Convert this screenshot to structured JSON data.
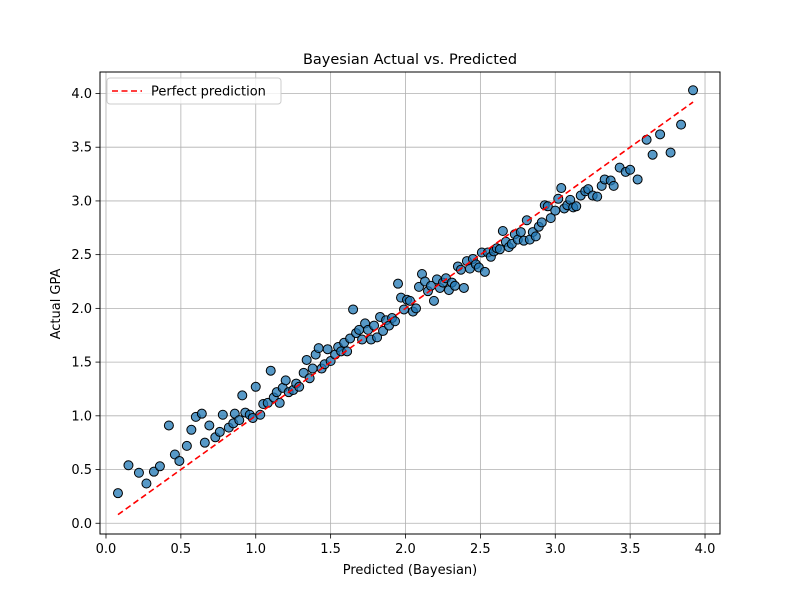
{
  "chart_data": {
    "type": "scatter",
    "title": "Bayesian Actual vs. Predicted",
    "xlabel": "Predicted (Bayesian)",
    "ylabel": "Actual GPA",
    "xlim": [
      -0.04,
      4.1
    ],
    "ylim": [
      -0.1,
      4.2
    ],
    "xticks": [
      0.0,
      0.5,
      1.0,
      1.5,
      2.0,
      2.5,
      3.0,
      3.5,
      4.0
    ],
    "yticks": [
      0.0,
      0.5,
      1.0,
      1.5,
      2.0,
      2.5,
      3.0,
      3.5,
      4.0
    ],
    "grid": true,
    "legend": {
      "position": "top-left",
      "entries": [
        "Perfect prediction"
      ]
    },
    "colors": {
      "points": "#1f77b4",
      "point_edge": "#000000",
      "reference_line": "#ff0000"
    },
    "reference_line": {
      "name": "Perfect prediction",
      "x": [
        0.08,
        3.92
      ],
      "y": [
        0.08,
        3.92
      ],
      "style": "dashed"
    },
    "series": [
      {
        "values": [
          {
            "x": 0.08,
            "y": 0.28
          },
          {
            "x": 0.15,
            "y": 0.54
          },
          {
            "x": 0.22,
            "y": 0.47
          },
          {
            "x": 0.27,
            "y": 0.37
          },
          {
            "x": 0.32,
            "y": 0.48
          },
          {
            "x": 0.36,
            "y": 0.53
          },
          {
            "x": 0.42,
            "y": 0.91
          },
          {
            "x": 0.46,
            "y": 0.64
          },
          {
            "x": 0.49,
            "y": 0.58
          },
          {
            "x": 0.54,
            "y": 0.72
          },
          {
            "x": 0.57,
            "y": 0.87
          },
          {
            "x": 0.6,
            "y": 0.99
          },
          {
            "x": 0.64,
            "y": 1.02
          },
          {
            "x": 0.66,
            "y": 0.75
          },
          {
            "x": 0.69,
            "y": 0.91
          },
          {
            "x": 0.73,
            "y": 0.8
          },
          {
            "x": 0.76,
            "y": 0.85
          },
          {
            "x": 0.78,
            "y": 1.01
          },
          {
            "x": 0.82,
            "y": 0.89
          },
          {
            "x": 0.85,
            "y": 0.93
          },
          {
            "x": 0.86,
            "y": 1.02
          },
          {
            "x": 0.89,
            "y": 0.96
          },
          {
            "x": 0.91,
            "y": 1.19
          },
          {
            "x": 0.93,
            "y": 1.03
          },
          {
            "x": 0.96,
            "y": 1.01
          },
          {
            "x": 0.98,
            "y": 0.98
          },
          {
            "x": 1.0,
            "y": 1.27
          },
          {
            "x": 1.03,
            "y": 1.01
          },
          {
            "x": 1.05,
            "y": 1.11
          },
          {
            "x": 1.08,
            "y": 1.12
          },
          {
            "x": 1.1,
            "y": 1.42
          },
          {
            "x": 1.12,
            "y": 1.17
          },
          {
            "x": 1.14,
            "y": 1.22
          },
          {
            "x": 1.16,
            "y": 1.12
          },
          {
            "x": 1.18,
            "y": 1.26
          },
          {
            "x": 1.2,
            "y": 1.33
          },
          {
            "x": 1.22,
            "y": 1.22
          },
          {
            "x": 1.25,
            "y": 1.24
          },
          {
            "x": 1.27,
            "y": 1.3
          },
          {
            "x": 1.29,
            "y": 1.27
          },
          {
            "x": 1.32,
            "y": 1.4
          },
          {
            "x": 1.34,
            "y": 1.52
          },
          {
            "x": 1.36,
            "y": 1.35
          },
          {
            "x": 1.38,
            "y": 1.44
          },
          {
            "x": 1.4,
            "y": 1.57
          },
          {
            "x": 1.42,
            "y": 1.63
          },
          {
            "x": 1.44,
            "y": 1.44
          },
          {
            "x": 1.46,
            "y": 1.48
          },
          {
            "x": 1.48,
            "y": 1.62
          },
          {
            "x": 1.5,
            "y": 1.51
          },
          {
            "x": 1.53,
            "y": 1.57
          },
          {
            "x": 1.55,
            "y": 1.64
          },
          {
            "x": 1.57,
            "y": 1.6
          },
          {
            "x": 1.59,
            "y": 1.68
          },
          {
            "x": 1.61,
            "y": 1.6
          },
          {
            "x": 1.63,
            "y": 1.72
          },
          {
            "x": 1.65,
            "y": 1.99
          },
          {
            "x": 1.67,
            "y": 1.77
          },
          {
            "x": 1.69,
            "y": 1.8
          },
          {
            "x": 1.71,
            "y": 1.71
          },
          {
            "x": 1.73,
            "y": 1.86
          },
          {
            "x": 1.75,
            "y": 1.8
          },
          {
            "x": 1.77,
            "y": 1.71
          },
          {
            "x": 1.79,
            "y": 1.84
          },
          {
            "x": 1.81,
            "y": 1.73
          },
          {
            "x": 1.83,
            "y": 1.92
          },
          {
            "x": 1.85,
            "y": 1.79
          },
          {
            "x": 1.87,
            "y": 1.89
          },
          {
            "x": 1.89,
            "y": 1.84
          },
          {
            "x": 1.91,
            "y": 1.91
          },
          {
            "x": 1.93,
            "y": 1.88
          },
          {
            "x": 1.95,
            "y": 2.23
          },
          {
            "x": 1.97,
            "y": 2.1
          },
          {
            "x": 1.99,
            "y": 1.99
          },
          {
            "x": 2.01,
            "y": 2.08
          },
          {
            "x": 2.03,
            "y": 2.07
          },
          {
            "x": 2.05,
            "y": 1.97
          },
          {
            "x": 2.07,
            "y": 2.0
          },
          {
            "x": 2.09,
            "y": 2.2
          },
          {
            "x": 2.11,
            "y": 2.32
          },
          {
            "x": 2.13,
            "y": 2.25
          },
          {
            "x": 2.15,
            "y": 2.16
          },
          {
            "x": 2.17,
            "y": 2.21
          },
          {
            "x": 2.19,
            "y": 2.07
          },
          {
            "x": 2.21,
            "y": 2.27
          },
          {
            "x": 2.23,
            "y": 2.19
          },
          {
            "x": 2.25,
            "y": 2.24
          },
          {
            "x": 2.27,
            "y": 2.28
          },
          {
            "x": 2.29,
            "y": 2.17
          },
          {
            "x": 2.31,
            "y": 2.24
          },
          {
            "x": 2.33,
            "y": 2.21
          },
          {
            "x": 2.35,
            "y": 2.39
          },
          {
            "x": 2.37,
            "y": 2.36
          },
          {
            "x": 2.39,
            "y": 2.19
          },
          {
            "x": 2.41,
            "y": 2.44
          },
          {
            "x": 2.43,
            "y": 2.37
          },
          {
            "x": 2.45,
            "y": 2.46
          },
          {
            "x": 2.47,
            "y": 2.41
          },
          {
            "x": 2.49,
            "y": 2.38
          },
          {
            "x": 2.51,
            "y": 2.52
          },
          {
            "x": 2.53,
            "y": 2.34
          },
          {
            "x": 2.55,
            "y": 2.52
          },
          {
            "x": 2.57,
            "y": 2.48
          },
          {
            "x": 2.59,
            "y": 2.53
          },
          {
            "x": 2.61,
            "y": 2.56
          },
          {
            "x": 2.63,
            "y": 2.55
          },
          {
            "x": 2.65,
            "y": 2.72
          },
          {
            "x": 2.67,
            "y": 2.62
          },
          {
            "x": 2.69,
            "y": 2.57
          },
          {
            "x": 2.71,
            "y": 2.6
          },
          {
            "x": 2.73,
            "y": 2.69
          },
          {
            "x": 2.75,
            "y": 2.64
          },
          {
            "x": 2.77,
            "y": 2.71
          },
          {
            "x": 2.79,
            "y": 2.63
          },
          {
            "x": 2.81,
            "y": 2.82
          },
          {
            "x": 2.83,
            "y": 2.64
          },
          {
            "x": 2.85,
            "y": 2.71
          },
          {
            "x": 2.87,
            "y": 2.67
          },
          {
            "x": 2.89,
            "y": 2.76
          },
          {
            "x": 2.91,
            "y": 2.8
          },
          {
            "x": 2.93,
            "y": 2.96
          },
          {
            "x": 2.95,
            "y": 2.95
          },
          {
            "x": 2.97,
            "y": 2.84
          },
          {
            "x": 3.0,
            "y": 2.91
          },
          {
            "x": 3.02,
            "y": 3.02
          },
          {
            "x": 3.04,
            "y": 3.12
          },
          {
            "x": 3.06,
            "y": 2.93
          },
          {
            "x": 3.08,
            "y": 2.96
          },
          {
            "x": 3.1,
            "y": 3.01
          },
          {
            "x": 3.12,
            "y": 2.94
          },
          {
            "x": 3.14,
            "y": 2.95
          },
          {
            "x": 3.17,
            "y": 3.05
          },
          {
            "x": 3.2,
            "y": 3.09
          },
          {
            "x": 3.22,
            "y": 3.11
          },
          {
            "x": 3.25,
            "y": 3.05
          },
          {
            "x": 3.28,
            "y": 3.04
          },
          {
            "x": 3.31,
            "y": 3.14
          },
          {
            "x": 3.33,
            "y": 3.2
          },
          {
            "x": 3.37,
            "y": 3.19
          },
          {
            "x": 3.39,
            "y": 3.14
          },
          {
            "x": 3.43,
            "y": 3.31
          },
          {
            "x": 3.47,
            "y": 3.27
          },
          {
            "x": 3.5,
            "y": 3.29
          },
          {
            "x": 3.55,
            "y": 3.2
          },
          {
            "x": 3.61,
            "y": 3.57
          },
          {
            "x": 3.65,
            "y": 3.43
          },
          {
            "x": 3.7,
            "y": 3.62
          },
          {
            "x": 3.77,
            "y": 3.45
          },
          {
            "x": 3.84,
            "y": 3.71
          },
          {
            "x": 3.92,
            "y": 4.03
          }
        ]
      }
    ]
  }
}
